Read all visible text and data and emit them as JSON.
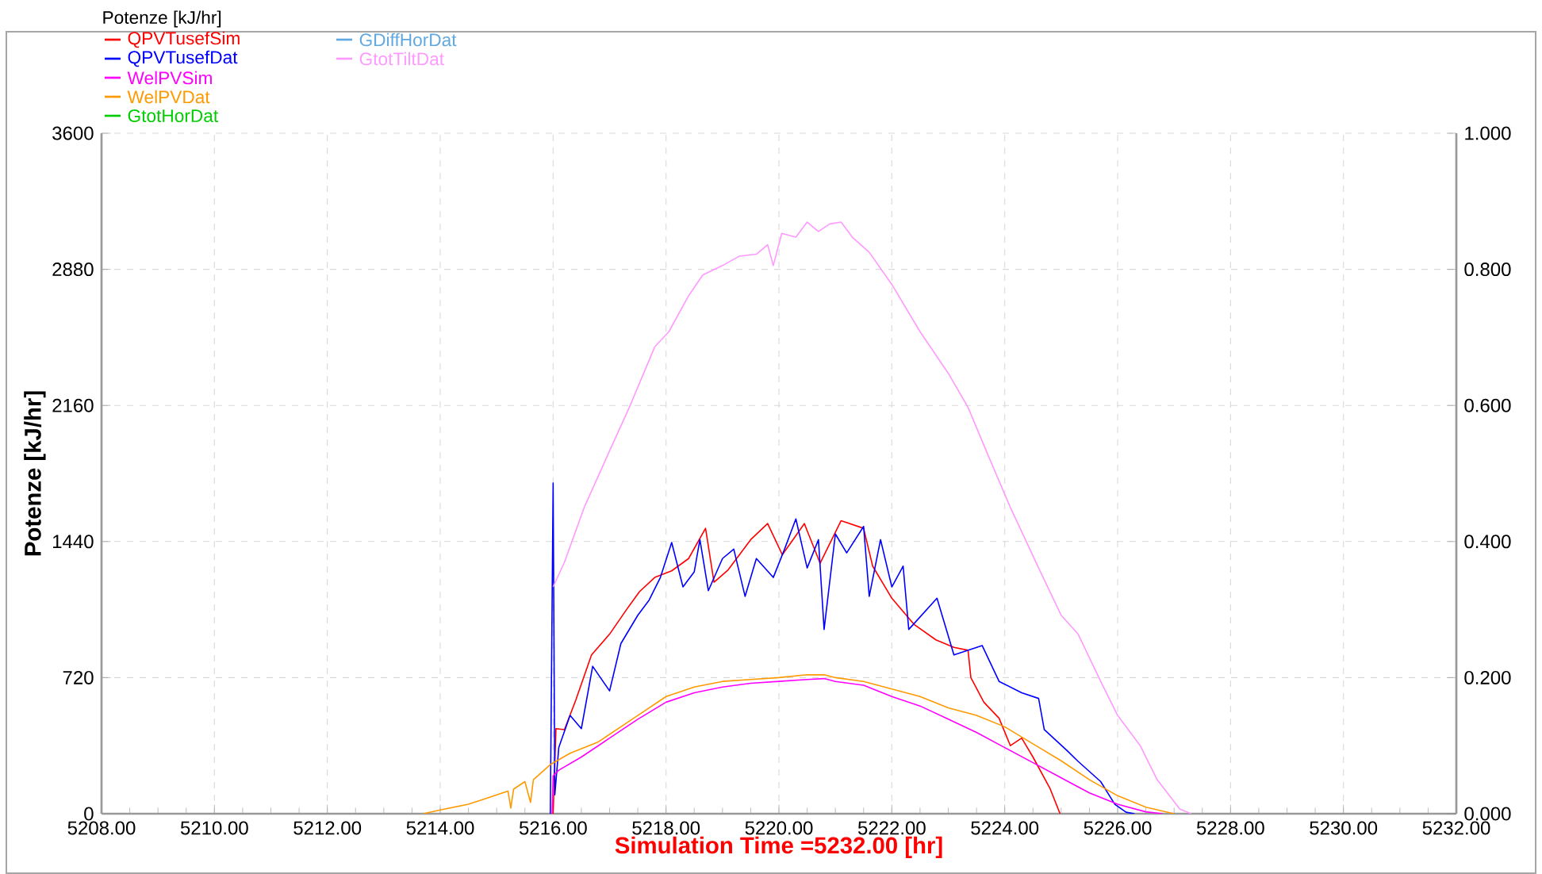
{
  "chart_data": {
    "type": "line",
    "legend_title": "Potenze [kJ/hr]",
    "ylabel": "Potenze [kJ/hr]",
    "xlabel": "Simulation Time =5232.00 [hr]",
    "xlim": [
      5208,
      5232
    ],
    "xticks": [
      {
        "value": 5208,
        "label": "5208.00"
      },
      {
        "value": 5210,
        "label": "5210.00"
      },
      {
        "value": 5212,
        "label": "5212.00"
      },
      {
        "value": 5214,
        "label": "5214.00"
      },
      {
        "value": 5216,
        "label": "5216.00"
      },
      {
        "value": 5218,
        "label": "5218.00"
      },
      {
        "value": 5220,
        "label": "5220.00"
      },
      {
        "value": 5222,
        "label": "5222.00"
      },
      {
        "value": 5224,
        "label": "5224.00"
      },
      {
        "value": 5226,
        "label": "5226.00"
      },
      {
        "value": 5228,
        "label": "5228.00"
      },
      {
        "value": 5230,
        "label": "5230.00"
      },
      {
        "value": 5232,
        "label": "5232.00"
      }
    ],
    "ylim": [
      0,
      3600
    ],
    "yticks": [
      0,
      720,
      1440,
      2160,
      2880,
      3600
    ],
    "y2lim": [
      0,
      1
    ],
    "y2ticks": [
      {
        "value": 0,
        "label": "0.000"
      },
      {
        "value": 0.2,
        "label": "0.200"
      },
      {
        "value": 0.4,
        "label": "0.400"
      },
      {
        "value": 0.6,
        "label": "0.600"
      },
      {
        "value": 0.8,
        "label": "0.800"
      },
      {
        "value": 1,
        "label": "1.000"
      }
    ],
    "grid": true,
    "legend": "top left",
    "series": [
      {
        "name": "QPVTusefSim",
        "color": "#ff0000",
        "x": [
          5215.97,
          5216.0,
          5216.05,
          5216.2,
          5216.4,
          5216.68,
          5217,
          5217.3,
          5217.53,
          5217.8,
          5218.1,
          5218.4,
          5218.7,
          5218.85,
          5219.1,
          5219.5,
          5219.8,
          5220.06,
          5220.45,
          5220.73,
          5221.1,
          5221.5,
          5221.66,
          5222,
          5222.4,
          5222.78,
          5223.1,
          5223.35,
          5223.4,
          5223.63,
          5223.9,
          5224.1,
          5224.3,
          5224.5,
          5224.8,
          5224.98
        ],
        "values": [
          0,
          0,
          450,
          445,
          600,
          840,
          950,
          1080,
          1175,
          1250,
          1285,
          1350,
          1510,
          1225,
          1290,
          1450,
          1535,
          1370,
          1535,
          1325,
          1550,
          1510,
          1310,
          1140,
          1000,
          920,
          880,
          865,
          720,
          590,
          505,
          360,
          400,
          300,
          135,
          0
        ]
      },
      {
        "name": "QPVTusefDat",
        "color": "#0000ff",
        "x": [
          5215.95,
          5216.0,
          5216.03,
          5216.1,
          5216.3,
          5216.5,
          5216.7,
          5217,
          5217.2,
          5217.5,
          5217.7,
          5217.9,
          5218.1,
          5218.3,
          5218.5,
          5218.6,
          5218.75,
          5219,
          5219.2,
          5219.4,
          5219.6,
          5219.9,
          5220.1,
          5220.3,
          5220.5,
          5220.7,
          5220.8,
          5221,
          5221.2,
          5221.5,
          5221.6,
          5221.8,
          5222,
          5222.2,
          5222.3,
          5222.8,
          5223.1,
          5223.6,
          5223.9,
          5224.3,
          5224.6,
          5224.7,
          5225.1,
          5225.3,
          5225.7,
          5225.95,
          5226.15,
          5226.3
        ],
        "values": [
          0,
          1750,
          100,
          350,
          520,
          450,
          780,
          650,
          900,
          1050,
          1130,
          1250,
          1435,
          1200,
          1280,
          1450,
          1180,
          1350,
          1400,
          1150,
          1350,
          1250,
          1400,
          1560,
          1300,
          1450,
          975,
          1480,
          1380,
          1520,
          1150,
          1450,
          1200,
          1310,
          975,
          1140,
          840,
          890,
          700,
          640,
          610,
          445,
          335,
          277,
          170,
          50,
          8,
          0
        ]
      },
      {
        "name": "WelPVSim",
        "color": "#ff00ff",
        "x": [
          5215.98,
          5216,
          5216.1,
          5216.5,
          5217,
          5217.5,
          5218,
          5218.5,
          5219,
          5219.5,
          5220,
          5220.5,
          5220.8,
          5221,
          5221.5,
          5222,
          5222.5,
          5223,
          5223.5,
          5224,
          5224.5,
          5225,
          5225.5,
          5226,
          5226.5,
          5226.8
        ],
        "values": [
          0,
          200,
          230,
          300,
          400,
          500,
          590,
          640,
          670,
          690,
          700,
          710,
          715,
          700,
          680,
          620,
          570,
          500,
          430,
          350,
          270,
          190,
          110,
          50,
          10,
          0
        ]
      },
      {
        "name": "WelPVDat",
        "color": "#ff9900",
        "x": [
          5213.7,
          5214,
          5214.5,
          5214.8,
          5215.0,
          5215.2,
          5215.25,
          5215.3,
          5215.5,
          5215.6,
          5215.65,
          5215.8,
          5215.95,
          5216.3,
          5216.8,
          5217.5,
          5218,
          5218.5,
          5219,
          5219.5,
          5220,
          5220.5,
          5220.8,
          5221,
          5221.5,
          5222,
          5222.5,
          5223,
          5223.5,
          5224,
          5224.5,
          5225,
          5225.5,
          5226,
          5226.5,
          5227
        ],
        "values": [
          0,
          20,
          50,
          80,
          100,
          120,
          30,
          130,
          170,
          60,
          180,
          220,
          260,
          320,
          380,
          520,
          620,
          670,
          700,
          710,
          720,
          735,
          735,
          720,
          700,
          660,
          620,
          560,
          520,
          460,
          370,
          280,
          180,
          95,
          35,
          0
        ]
      },
      {
        "name": "GtotHorDat",
        "color": "#00cc00"
      },
      {
        "name": "GDiffHorDat",
        "color": "#60a8e0"
      },
      {
        "name": "GtotTiltDat",
        "color": "#ff99ff",
        "x": [
          5216,
          5216.2,
          5216.55,
          5217,
          5217.35,
          5217.8,
          5218.05,
          5218.4,
          5218.65,
          5219,
          5219.3,
          5219.6,
          5219.8,
          5219.9,
          5220.05,
          5220.3,
          5220.5,
          5220.7,
          5220.9,
          5221.1,
          5221.3,
          5221.6,
          5222,
          5222.5,
          5223,
          5223.35,
          5223.7,
          5224.1,
          5224.6,
          5225,
          5225.3,
          5225.7,
          5226,
          5226.4,
          5226.7,
          5227.1,
          5227.3
        ],
        "values": [
          1200,
          1330,
          1620,
          1920,
          2150,
          2470,
          2550,
          2740,
          2850,
          2900,
          2950,
          2960,
          3010,
          2900,
          3070,
          3050,
          3130,
          3080,
          3120,
          3130,
          3050,
          2970,
          2800,
          2550,
          2330,
          2150,
          1900,
          1620,
          1300,
          1050,
          950,
          700,
          520,
          360,
          180,
          25,
          0
        ]
      }
    ]
  }
}
